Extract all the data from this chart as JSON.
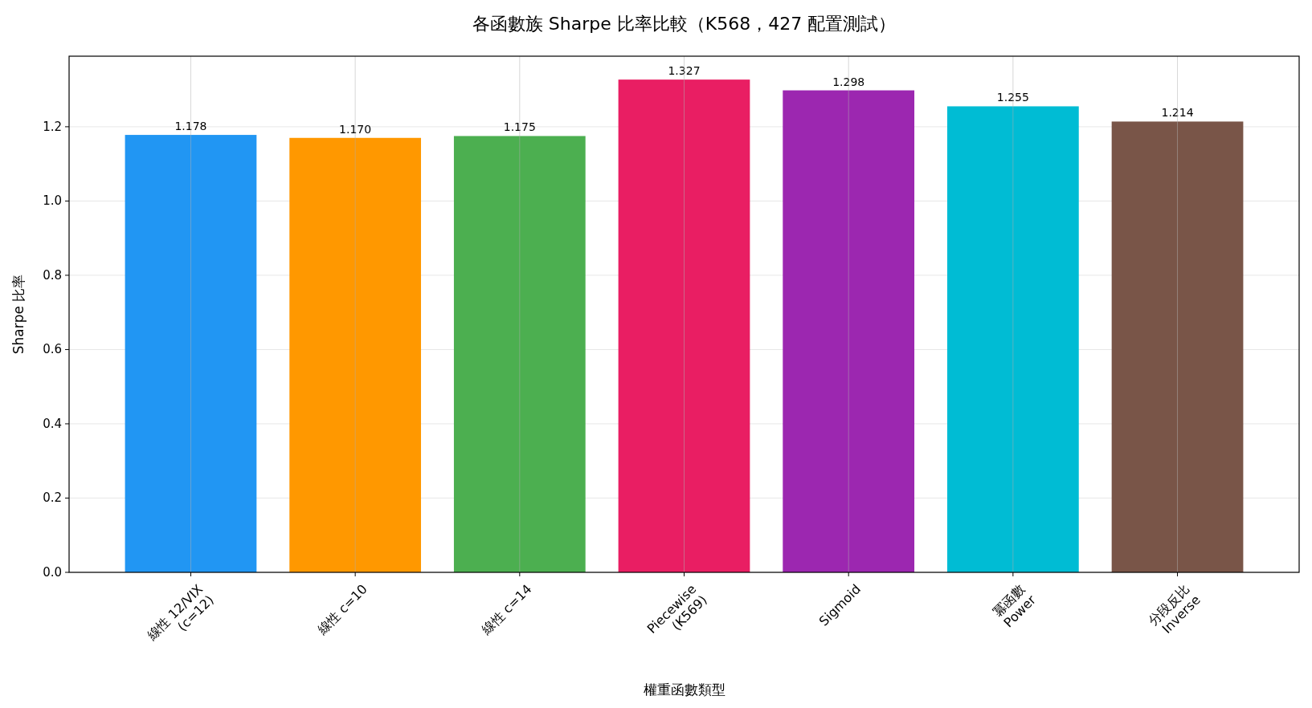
{
  "chart_data": {
    "type": "bar",
    "title": "各函數族 Sharpe 比率比較（K568，427 配置測試）",
    "xlabel": "權重函數類型",
    "ylabel": "Sharpe 比率",
    "categories": [
      "線性 12/VIX\n(c=12)",
      "線性 c=10",
      "線性 c=14",
      "Piecewise\n(K569)",
      "Sigmoid",
      "冪函數\nPower",
      "分段反比\nInverse"
    ],
    "values": [
      1.178,
      1.17,
      1.175,
      1.327,
      1.298,
      1.255,
      1.214
    ],
    "value_labels": [
      "1.178",
      "1.170",
      "1.175",
      "1.327",
      "1.298",
      "1.255",
      "1.214"
    ],
    "colors": [
      "#2196f3",
      "#ff9800",
      "#4caf50",
      "#e91e63",
      "#9c27b0",
      "#00bcd4",
      "#795548"
    ],
    "ylim": [
      0,
      1.39
    ],
    "yticks": [
      {
        "value": 0,
        "label": "0.0"
      },
      {
        "value": 0.2,
        "label": "0.2"
      },
      {
        "value": 0.4,
        "label": "0.4"
      },
      {
        "value": 0.6,
        "label": "0.6"
      },
      {
        "value": 0.8,
        "label": "0.8"
      },
      {
        "value": 1,
        "label": "1.0"
      },
      {
        "value": 1.2,
        "label": "1.2"
      }
    ],
    "grid": true
  }
}
